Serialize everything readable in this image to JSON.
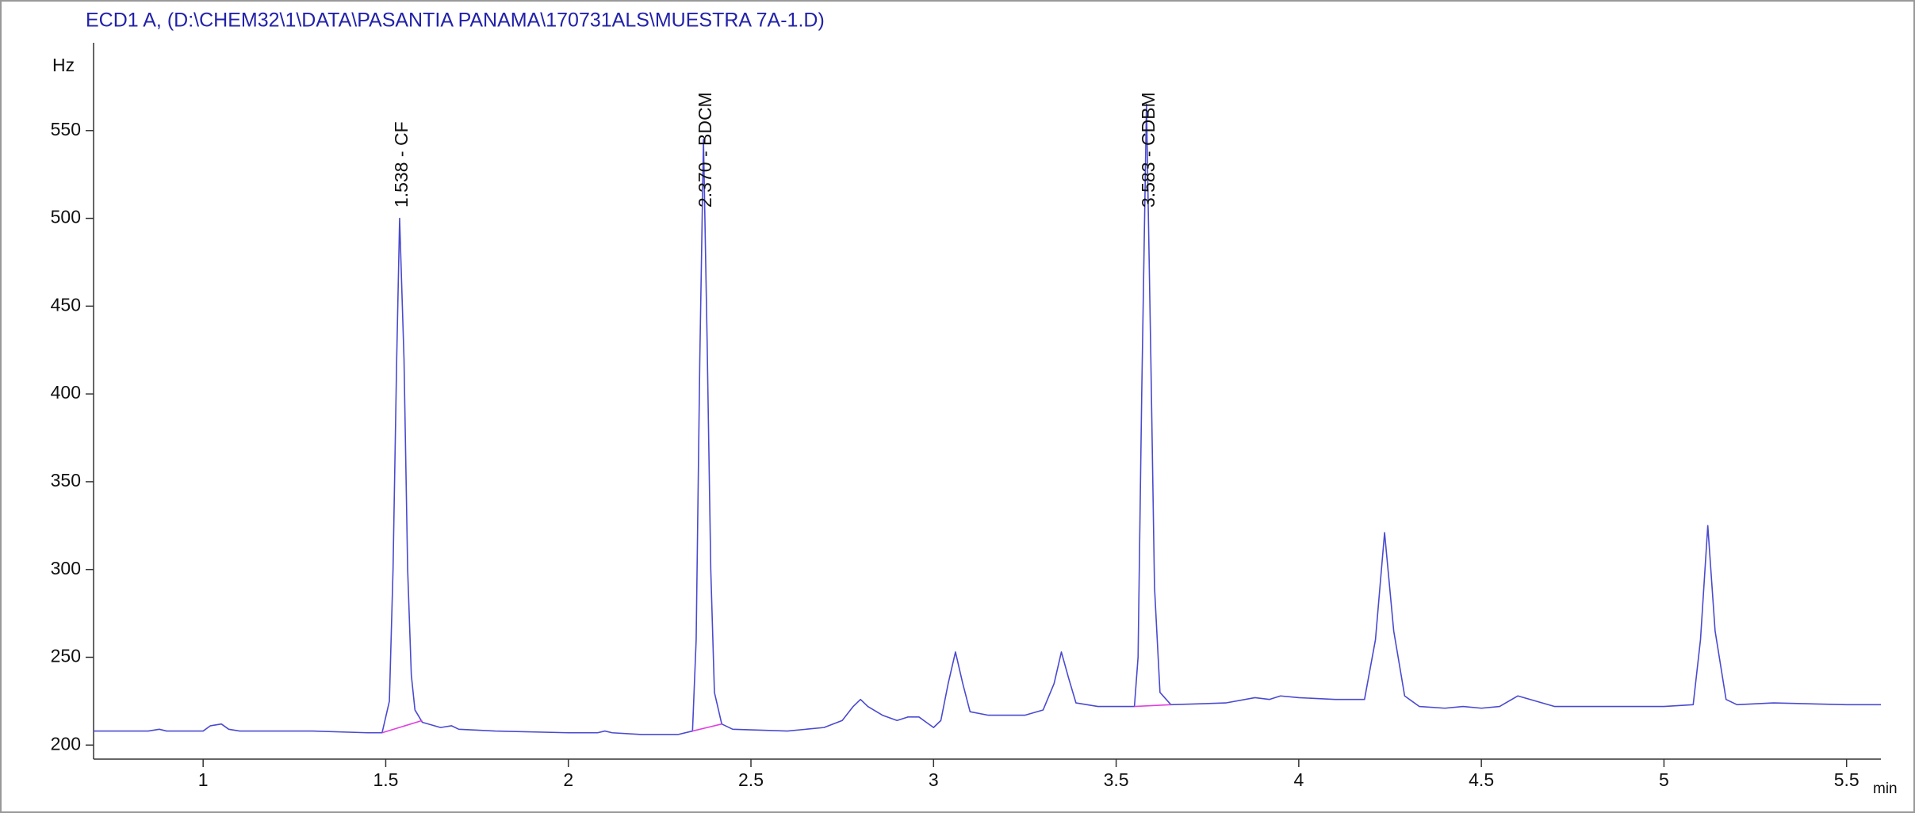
{
  "chart_data": {
    "type": "line",
    "title": "ECD1 A,  (D:\\CHEM32\\1\\DATA\\PASANTIA PANAMA\\170731ALS\\MUESTRA 7A-1.D)",
    "y_label": "Hz",
    "x_label": "min",
    "xlim": [
      0.7,
      5.594
    ],
    "ylim": [
      192,
      600
    ],
    "xticks": [
      1,
      1.5,
      2,
      2.5,
      3,
      3.5,
      4,
      4.5,
      5,
      5.5
    ],
    "yticks": [
      200,
      250,
      300,
      350,
      400,
      450,
      500,
      550
    ],
    "annotations": [
      {
        "text": "1.538 -  CF",
        "x": 1.538
      },
      {
        "text": "2.370 -  BDCM",
        "x": 2.37
      },
      {
        "text": "3.583 -  CDBM",
        "x": 3.583
      }
    ],
    "series": [
      {
        "color": "#4a4ad0",
        "x": [
          0.7,
          0.85,
          0.88,
          0.9,
          1.0,
          1.02,
          1.05,
          1.07,
          1.1,
          1.3,
          1.45,
          1.49,
          1.51,
          1.52,
          1.53,
          1.538,
          1.55,
          1.56,
          1.57,
          1.58,
          1.6,
          1.65,
          1.68,
          1.7,
          1.8,
          2.0,
          2.08,
          2.1,
          2.12,
          2.2,
          2.3,
          2.34,
          2.35,
          2.36,
          2.37,
          2.38,
          2.39,
          2.4,
          2.42,
          2.45,
          2.6,
          2.7,
          2.75,
          2.78,
          2.8,
          2.82,
          2.86,
          2.9,
          2.93,
          2.96,
          2.98,
          3.0,
          3.02,
          3.04,
          3.06,
          3.08,
          3.1,
          3.15,
          3.25,
          3.3,
          3.33,
          3.35,
          3.37,
          3.39,
          3.45,
          3.55,
          3.56,
          3.57,
          3.583,
          3.595,
          3.605,
          3.62,
          3.65,
          3.8,
          3.88,
          3.92,
          3.95,
          4.0,
          4.1,
          4.18,
          4.21,
          4.235,
          4.26,
          4.29,
          4.33,
          4.4,
          4.45,
          4.5,
          4.55,
          4.6,
          4.65,
          4.7,
          5.0,
          5.08,
          5.1,
          5.12,
          5.14,
          5.17,
          5.2,
          5.3,
          5.5,
          5.594
        ],
        "values": [
          208,
          208,
          209,
          208,
          208,
          211,
          212,
          209,
          208,
          208,
          207,
          207,
          225,
          300,
          420,
          500,
          420,
          300,
          240,
          220,
          213,
          210,
          211,
          209,
          208,
          207,
          207,
          208,
          207,
          206,
          206,
          208,
          260,
          420,
          545,
          430,
          300,
          230,
          212,
          209,
          208,
          210,
          214,
          222,
          226,
          222,
          217,
          214,
          216,
          216,
          213,
          210,
          214,
          235,
          253,
          235,
          219,
          217,
          217,
          220,
          235,
          253,
          238,
          224,
          222,
          222,
          250,
          400,
          565,
          420,
          290,
          230,
          223,
          224,
          227,
          226,
          228,
          227,
          226,
          226,
          260,
          321,
          265,
          228,
          222,
          221,
          222,
          221,
          222,
          228,
          225,
          222,
          222,
          223,
          260,
          325,
          265,
          226,
          223,
          224,
          223,
          223
        ]
      },
      {
        "color": "#e040e0",
        "x": [
          1.49,
          1.6,
          null,
          2.34,
          2.42,
          null,
          3.55,
          3.65
        ],
        "values": [
          207,
          214,
          null,
          208,
          212,
          null,
          222,
          223
        ]
      }
    ]
  }
}
